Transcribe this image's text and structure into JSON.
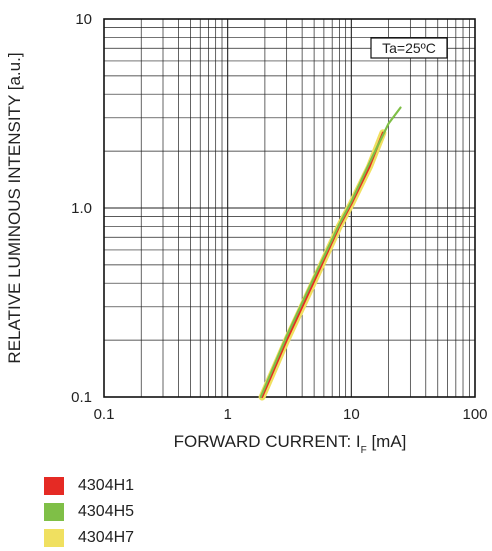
{
  "chart_data": {
    "type": "line",
    "xscale": "log",
    "yscale": "log",
    "xlim": [
      0.1,
      100
    ],
    "ylim": [
      0.1,
      10
    ],
    "x_ticks": [
      "0.1",
      "1",
      "10",
      "100"
    ],
    "y_ticks": [
      "0.1",
      "1.0",
      "10"
    ],
    "xlabel_main": "FORWARD CURRENT: I",
    "xlabel_sub": "F",
    "xlabel_unit": " [mA]",
    "ylabel": "RELATIVE LUMINOUS INTENSITY [a.u.]",
    "annotation": "Ta=25ºC",
    "grid": true,
    "legend_placement": "bottom-left",
    "series": [
      {
        "name": "4304H7",
        "color": "#f0e060",
        "width": 7,
        "x": [
          1.9,
          3,
          5,
          8,
          10,
          14,
          18
        ],
        "y": [
          0.1,
          0.2,
          0.41,
          0.8,
          1.05,
          1.65,
          2.5
        ]
      },
      {
        "name": "4304H1",
        "color": "#e52a24",
        "width": 2.2,
        "x": [
          1.9,
          3,
          5,
          8,
          10,
          14,
          18
        ],
        "y": [
          0.1,
          0.2,
          0.41,
          0.8,
          1.05,
          1.65,
          2.5
        ]
      },
      {
        "name": "4304H5",
        "color": "#7fbf47",
        "width": 2.2,
        "x": [
          1.85,
          3,
          5,
          8,
          10,
          15,
          20,
          25
        ],
        "y": [
          0.1,
          0.21,
          0.43,
          0.82,
          1.08,
          1.9,
          2.8,
          3.4
        ]
      }
    ]
  },
  "legend": [
    {
      "label": "4304H1",
      "color": "#e52a24"
    },
    {
      "label": "4304H5",
      "color": "#7fbf47"
    },
    {
      "label": "4304H7",
      "color": "#f0e060"
    }
  ]
}
